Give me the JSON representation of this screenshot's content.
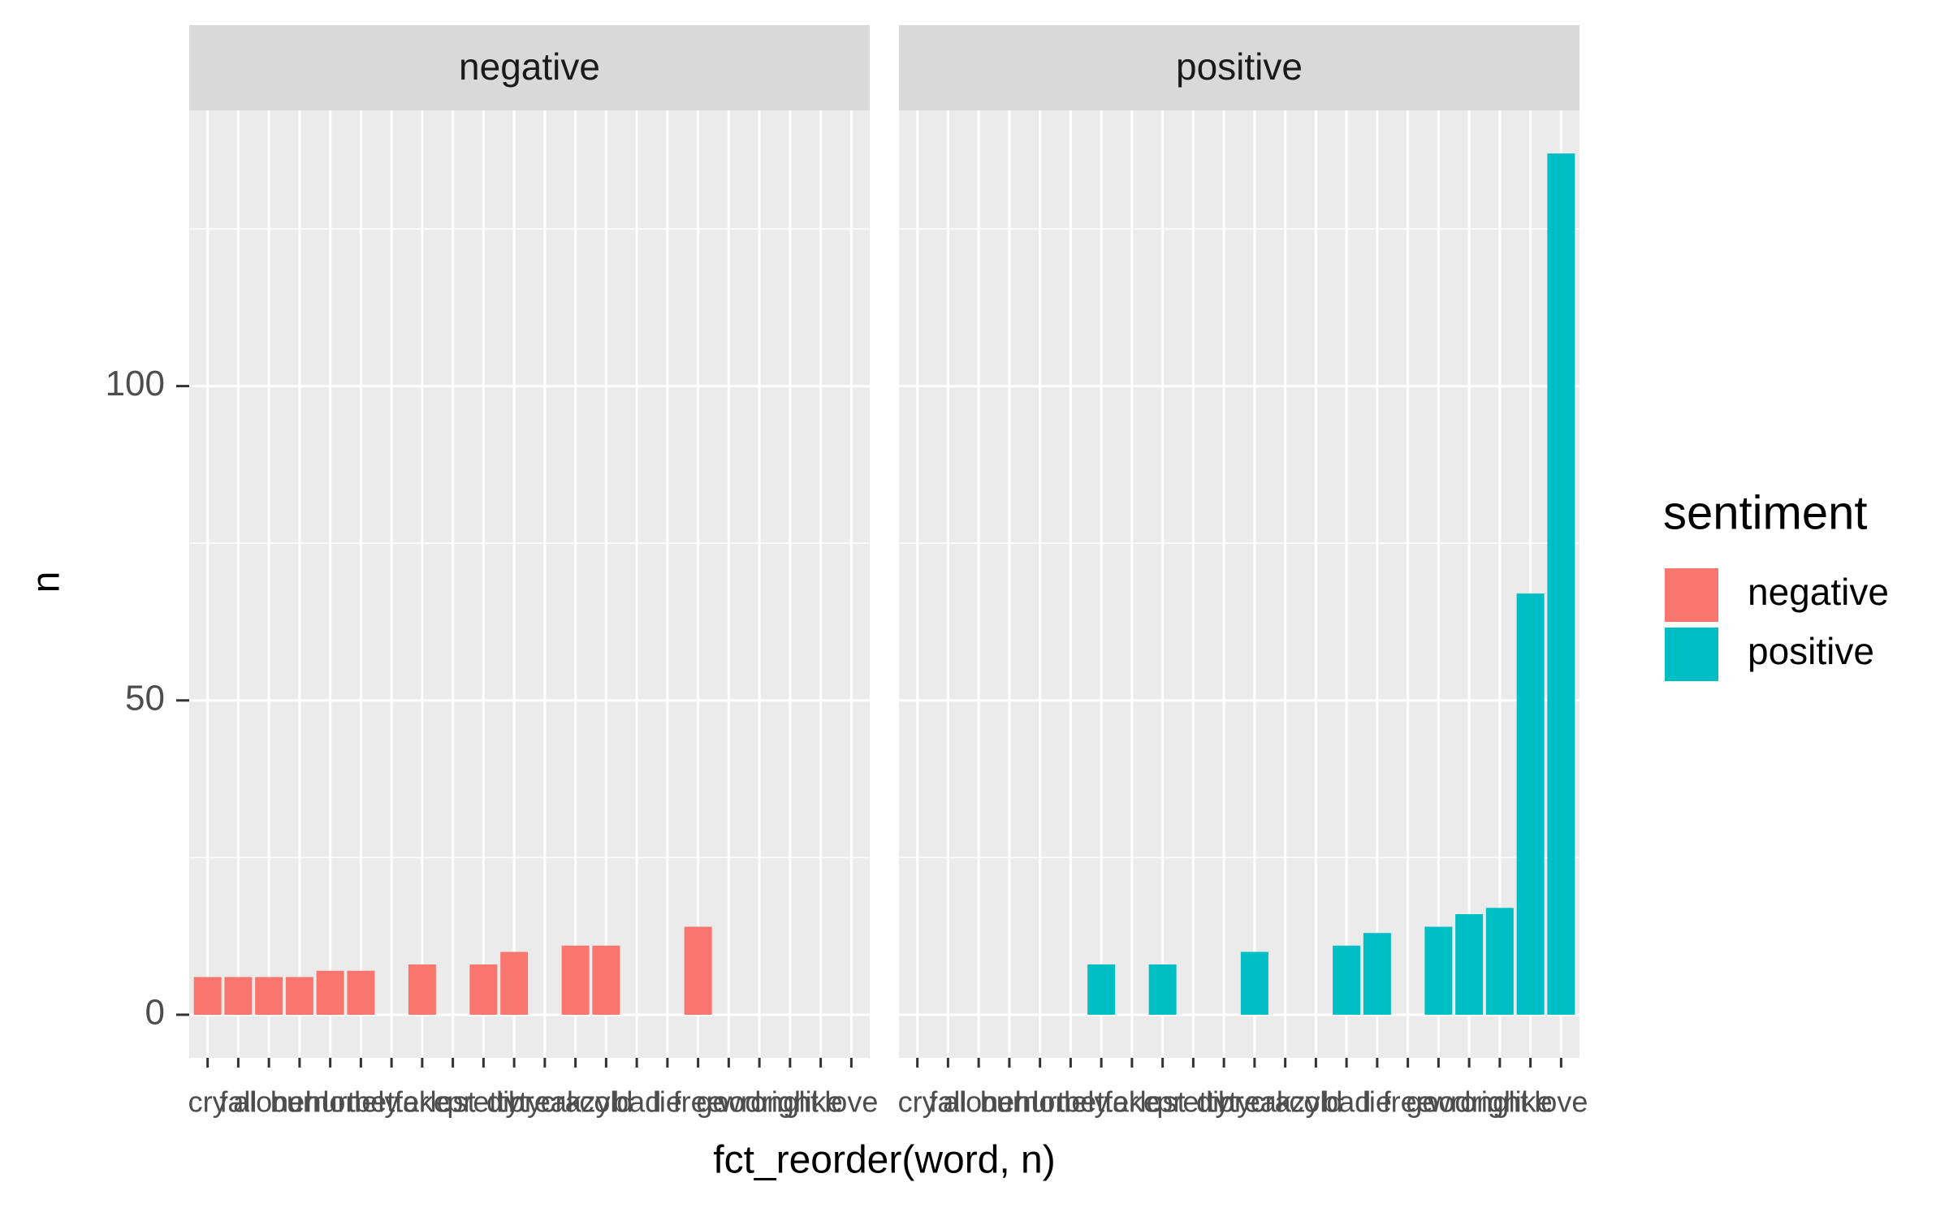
{
  "chart_data": {
    "type": "bar",
    "x_label": "fct_reorder(word, n)",
    "y_label": "n",
    "legend_title": "sentiment",
    "facets": [
      "negative",
      "positive"
    ],
    "categories": [
      "cry",
      "fall",
      "alone",
      "burn",
      "hurt",
      "lonely",
      "better",
      "fake",
      "lost",
      "pretty",
      "dirty",
      "break",
      "crazy",
      "cold",
      "bad",
      "lie",
      "free",
      "good",
      "wrong",
      "right",
      "like",
      "love"
    ],
    "series": [
      {
        "name": "negative",
        "color": "#F8766D",
        "values": [
          6,
          6,
          6,
          6,
          7,
          7,
          null,
          8,
          null,
          8,
          10,
          null,
          11,
          11,
          null,
          null,
          14,
          null,
          null,
          null,
          null,
          null
        ]
      },
      {
        "name": "positive",
        "color": "#00BFC4",
        "values": [
          null,
          null,
          null,
          null,
          null,
          null,
          8,
          null,
          8,
          null,
          null,
          10,
          null,
          null,
          11,
          13,
          null,
          14,
          16,
          17,
          67,
          137
        ]
      }
    ],
    "ylim": [
      -6.85,
      143.85
    ],
    "yticks": [
      0,
      50,
      100
    ],
    "minor_yticks": [
      25,
      75,
      125
    ],
    "grid": true,
    "legend": "right"
  }
}
